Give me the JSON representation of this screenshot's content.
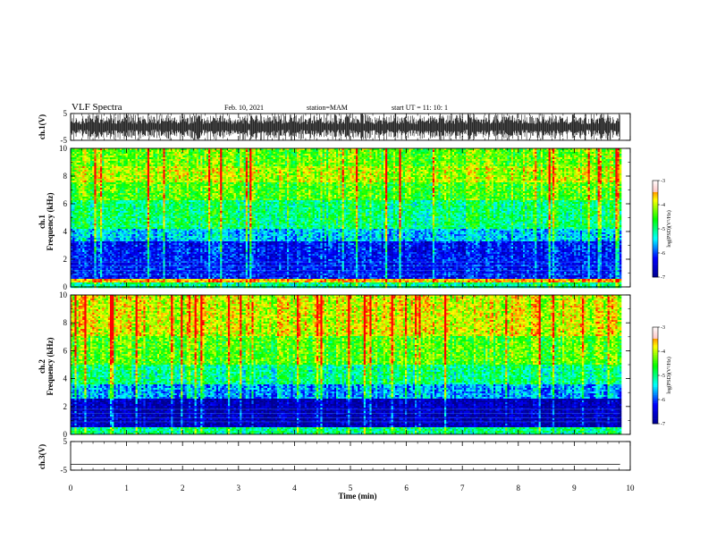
{
  "header": {
    "title": "VLF Spectra",
    "date": "Feb. 10, 2021",
    "station": "station=MAM",
    "start_ut": "start  UT =   11: 10: 1"
  },
  "chart_data": [
    {
      "type": "line",
      "name": "ch1-waveform",
      "ylabel": "ch.1(V)",
      "ylim": [
        -5,
        5
      ],
      "yticks": [
        5,
        -5
      ],
      "description_values": {
        "amplitude_range_v": [
          -5,
          5
        ],
        "dense_signal": true
      }
    },
    {
      "type": "heatmap",
      "name": "ch1-spectrogram",
      "ylabel": "ch.1\nFrequency (kHz)",
      "ylabel_lines": [
        "ch.1",
        "Frequency (kHz)"
      ],
      "ylim": [
        0,
        10
      ],
      "yticks": [
        0,
        2,
        4,
        6,
        8,
        10
      ],
      "colorbar": {
        "range": [
          -7,
          -3
        ],
        "ticks": [
          "-3",
          "-4",
          "-5",
          "-6",
          "-7"
        ],
        "label": "log(PSD)(V²/Hz)"
      },
      "bands_khz": [
        {
          "from": 0,
          "to": 0.3,
          "level": -5.0
        },
        {
          "from": 0.3,
          "to": 0.6,
          "level": -3.6
        },
        {
          "from": 0.6,
          "to": 3.3,
          "level": -6.2
        },
        {
          "from": 3.3,
          "to": 4.2,
          "level": -5.5
        },
        {
          "from": 4.2,
          "to": 6.2,
          "level": -4.9
        },
        {
          "from": 6.2,
          "to": 7.5,
          "level": -4.4
        },
        {
          "from": 7.5,
          "to": 8.7,
          "level": -4.0
        },
        {
          "from": 8.7,
          "to": 10,
          "level": -4.3
        }
      ]
    },
    {
      "type": "heatmap",
      "name": "ch2-spectrogram",
      "ylabel": "ch.2\nFrequency (kHz)",
      "ylabel_lines": [
        "ch.2",
        "Frequency (kHz)"
      ],
      "ylim": [
        0,
        10
      ],
      "yticks": [
        0,
        2,
        4,
        6,
        8,
        10
      ],
      "colorbar": {
        "range": [
          -7,
          -3
        ],
        "ticks": [
          "-3",
          "-4",
          "-5",
          "-6",
          "-7"
        ],
        "label": "log(PSD)(V²/Hz)"
      },
      "bands_khz": [
        {
          "from": 0,
          "to": 0.5,
          "level": -5.0
        },
        {
          "from": 0.5,
          "to": 2.6,
          "level": -6.7
        },
        {
          "from": 2.6,
          "to": 3.6,
          "level": -5.7
        },
        {
          "from": 3.6,
          "to": 5.0,
          "level": -5.0
        },
        {
          "from": 5.0,
          "to": 7.0,
          "level": -4.4
        },
        {
          "from": 7.0,
          "to": 10,
          "level": -3.9
        }
      ]
    },
    {
      "type": "line",
      "name": "ch3-waveform",
      "ylabel": "ch.3(V)",
      "ylim": [
        -5,
        5
      ],
      "yticks": [
        5,
        -5
      ],
      "values": [
        {
          "x": 0,
          "y": -3
        },
        {
          "x": 9.82,
          "y": -3
        }
      ]
    }
  ],
  "x_axis": {
    "xlabel": "Time (min)",
    "xlim": [
      0,
      10
    ],
    "xticks": [
      "0",
      "1",
      "2",
      "3",
      "4",
      "5",
      "6",
      "7",
      "8",
      "9",
      "10"
    ],
    "data_end_min": 9.82
  },
  "colors": {
    "colormap": [
      "#00008f",
      "#0000ff",
      "#00ffff",
      "#00ff00",
      "#ffff00",
      "#ff0000",
      "#ffffff"
    ]
  }
}
